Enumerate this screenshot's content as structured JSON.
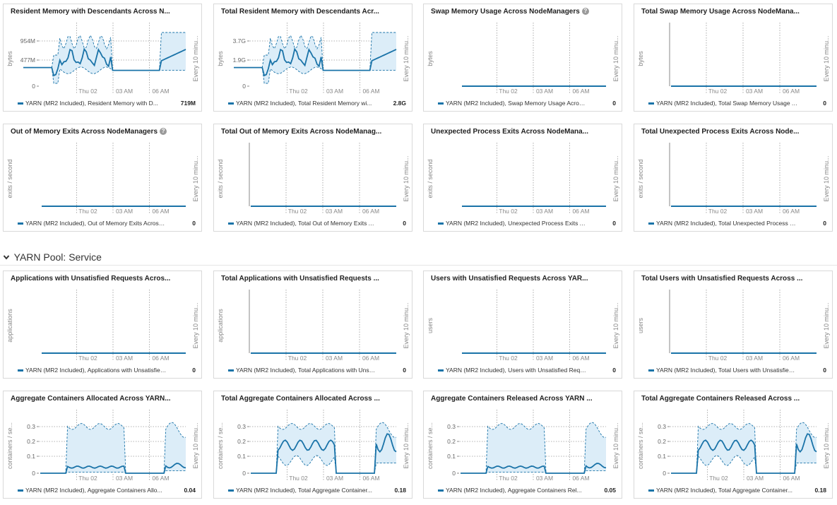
{
  "section": {
    "title": "YARN Pool: Service",
    "chevron": "chevron-down-icon"
  },
  "colors": {
    "line": "#1a73a8",
    "band": "#dcedf8",
    "axis": "#888888",
    "grid": "#999999"
  },
  "x_ticks": [
    "Thu 02",
    "03 AM",
    "06 AM"
  ],
  "side_label": "Every 10 minu...",
  "cards": [
    {
      "title": "Resident Memory with Descendants Across N...",
      "help": false,
      "ylabel": "bytes",
      "yticks": [
        "954M",
        "477M",
        "0"
      ],
      "legend_label": "YARN (MR2 Included), Resident Memory with D...",
      "legend_value": "719M",
      "shape": "mem"
    },
    {
      "title": "Total Resident Memory with Descendants Acr...",
      "help": false,
      "ylabel": "bytes",
      "yticks": [
        "3.7G",
        "1.9G",
        "0"
      ],
      "legend_label": "YARN (MR2 Included), Total Resident Memory wi...",
      "legend_value": "2.8G",
      "shape": "mem"
    },
    {
      "title": "Swap Memory Usage Across NodeManagers",
      "help": true,
      "ylabel": "bytes",
      "yticks": [],
      "legend_label": "YARN (MR2 Included), Swap Memory Usage Across ...",
      "legend_value": "0",
      "shape": "flat"
    },
    {
      "title": "Total Swap Memory Usage Across NodeMana...",
      "help": false,
      "ylabel": "bytes",
      "yticks": [],
      "legend_label": "YARN (MR2 Included), Total Swap Memory Usage A...",
      "legend_value": "0",
      "shape": "flat"
    },
    {
      "title": "Out of Memory Exits Across NodeManagers",
      "help": true,
      "ylabel": "exits / second",
      "yticks": [],
      "legend_label": "YARN (MR2 Included), Out of Memory Exits Across ...",
      "legend_value": "0",
      "shape": "flat"
    },
    {
      "title": "Total Out of Memory Exits Across NodeManag...",
      "help": false,
      "ylabel": "exits / second",
      "yticks": [],
      "legend_label": "YARN (MR2 Included), Total Out of Memory Exits Ac...",
      "legend_value": "0",
      "shape": "flat"
    },
    {
      "title": "Unexpected Process Exits Across NodeMana...",
      "help": false,
      "ylabel": "exits / second",
      "yticks": [],
      "legend_label": "YARN (MR2 Included), Unexpected Process Exits Ac...",
      "legend_value": "0",
      "shape": "flat"
    },
    {
      "title": "Total Unexpected Process Exits Across Node...",
      "help": false,
      "ylabel": "exits / second",
      "yticks": [],
      "legend_label": "YARN (MR2 Included), Total Unexpected Process Ex...",
      "legend_value": "0",
      "shape": "flat"
    },
    {
      "title": "Applications with Unsatisfied Requests Acros...",
      "help": false,
      "ylabel": "applications",
      "yticks": [],
      "legend_label": "YARN (MR2 Included), Applications with Unsatisfied ...",
      "legend_value": "0",
      "shape": "flat"
    },
    {
      "title": "Total Applications with Unsatisfied Requests ...",
      "help": false,
      "ylabel": "applications",
      "yticks": [],
      "legend_label": "YARN (MR2 Included), Total Applications with Unsati...",
      "legend_value": "0",
      "shape": "flat"
    },
    {
      "title": "Users with Unsatisfied Requests Across YAR...",
      "help": false,
      "ylabel": "users",
      "yticks": [],
      "legend_label": "YARN (MR2 Included), Users with Unsatisfied Reque...",
      "legend_value": "0",
      "shape": "flat"
    },
    {
      "title": "Total Users with Unsatisfied Requests Across ...",
      "help": false,
      "ylabel": "users",
      "yticks": [],
      "legend_label": "YARN (MR2 Included), Total Users with Unsatisfied ...",
      "legend_value": "0",
      "shape": "flat"
    },
    {
      "title": "Aggregate Containers Allocated Across YARN...",
      "help": false,
      "ylabel": "containers / se...",
      "yticks": [
        "0.3",
        "0.2",
        "0.1",
        "0"
      ],
      "legend_label": "YARN (MR2 Included), Aggregate Containers Allo...",
      "legend_value": "0.04",
      "shape": "cont_low"
    },
    {
      "title": "Total Aggregate Containers Allocated Across ...",
      "help": false,
      "ylabel": "containers / se...",
      "yticks": [
        "0.3",
        "0.2",
        "0.1",
        "0"
      ],
      "legend_label": "YARN (MR2 Included), Total Aggregate Container...",
      "legend_value": "0.18",
      "shape": "cont_high"
    },
    {
      "title": "Aggregate Containers Released Across YARN ...",
      "help": false,
      "ylabel": "containers / se...",
      "yticks": [
        "0.3",
        "0.2",
        "0.1",
        "0"
      ],
      "legend_label": "YARN (MR2 Included), Aggregate Containers Rel...",
      "legend_value": "0.05",
      "shape": "cont_low"
    },
    {
      "title": "Total Aggregate Containers Released Across ...",
      "help": false,
      "ylabel": "containers / se...",
      "yticks": [
        "0.3",
        "0.2",
        "0.1",
        "0"
      ],
      "legend_label": "YARN (MR2 Included), Total Aggregate Container...",
      "legend_value": "0.18",
      "shape": "cont_high"
    }
  ]
}
